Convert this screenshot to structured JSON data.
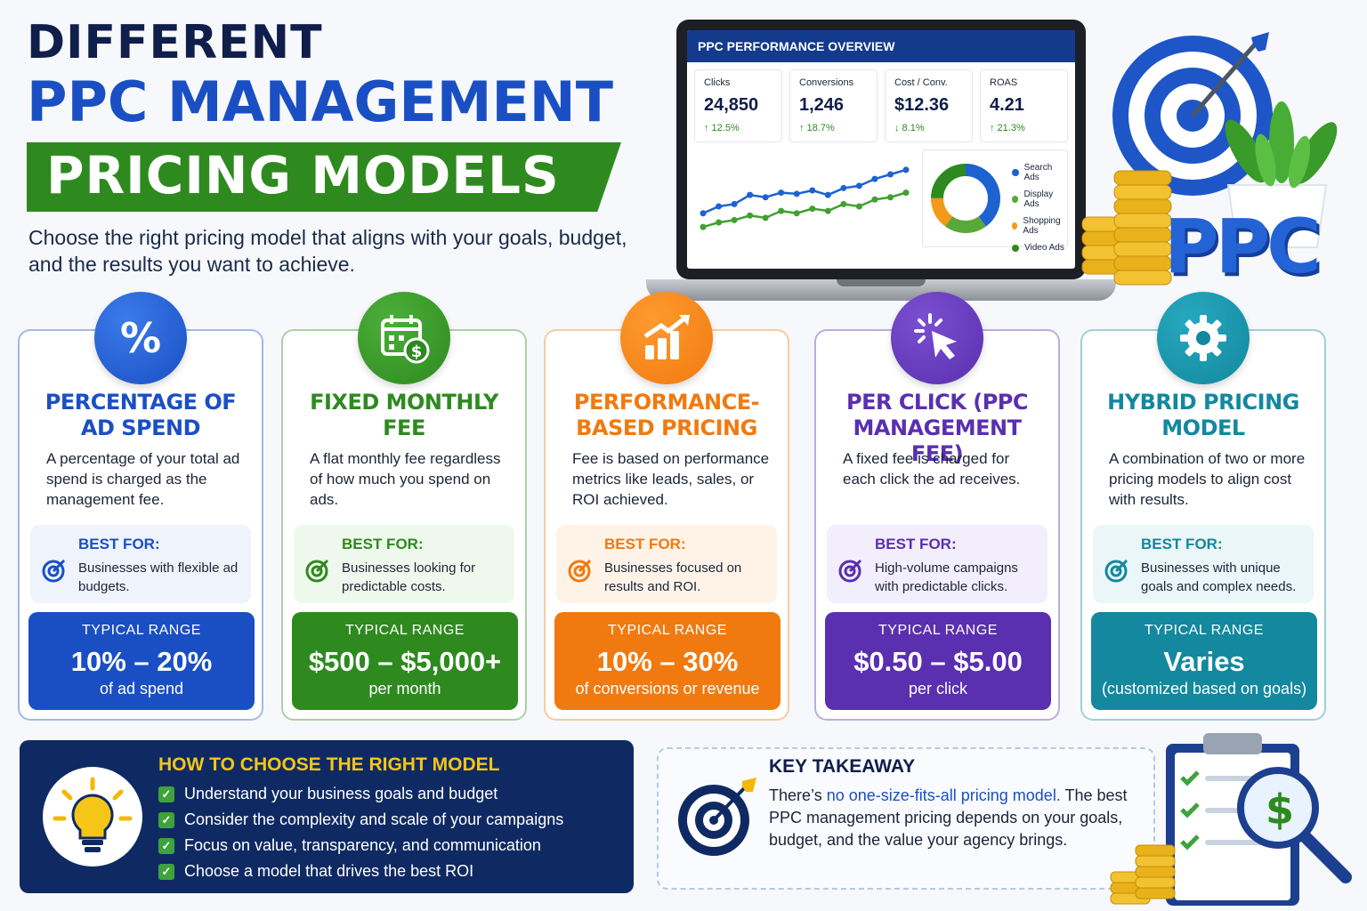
{
  "header": {
    "title_line1": "DIFFERENT",
    "title_line2": "PPC MANAGEMENT",
    "title_line3": "PRICING MODELS",
    "subtitle": "Choose the right pricing model that aligns with your goals, budget, and the results you want to achieve."
  },
  "dashboard": {
    "title": "PPC PERFORMANCE OVERVIEW",
    "kpis": [
      {
        "label": "Clicks",
        "value": "24,850",
        "delta": "↑ 12.5%"
      },
      {
        "label": "Conversions",
        "value": "1,246",
        "delta": "↑ 18.7%"
      },
      {
        "label": "Cost / Conv.",
        "value": "$12.36",
        "delta": "↓ 8.1%"
      },
      {
        "label": "ROAS",
        "value": "4.21",
        "delta": "↑ 21.3%"
      }
    ],
    "legend": [
      {
        "label": "Search Ads",
        "color": "#1e62d0"
      },
      {
        "label": "Display Ads",
        "color": "#59a83a"
      },
      {
        "label": "Shopping Ads",
        "color": "#f39a1b"
      },
      {
        "label": "Video Ads",
        "color": "#2e8a1f"
      }
    ],
    "line_series": {
      "blue": [
        22,
        28,
        30,
        38,
        36,
        40,
        39,
        42,
        38,
        44,
        46,
        52,
        56,
        60
      ],
      "green": [
        10,
        14,
        16,
        20,
        18,
        24,
        22,
        26,
        24,
        30,
        28,
        34,
        36,
        40
      ]
    },
    "donut_shares": [
      40,
      20,
      15,
      25
    ]
  },
  "badge": {
    "text": "PPC"
  },
  "cards": [
    {
      "title": "PERCENTAGE OF AD SPEND",
      "description": "A percentage of your total ad spend is charged as the management fee.",
      "best_label": "BEST FOR:",
      "best_text": "Businesses with flexible ad budgets.",
      "range_label": "TYPICAL RANGE",
      "range_value": "10% – 20%",
      "range_sub": "of ad spend",
      "icon": "percent-icon",
      "color": "#1a4fc4"
    },
    {
      "title": "FIXED MONTHLY FEE",
      "description": "A flat monthly fee regardless of how much you spend on ads.",
      "best_label": "BEST FOR:",
      "best_text": "Businesses looking for predictable costs.",
      "range_label": "TYPICAL RANGE",
      "range_value": "$500 – $5,000+",
      "range_sub": "per month",
      "icon": "calendar-dollar-icon",
      "color": "#2e8a1f"
    },
    {
      "title": "PERFORMANCE-BASED PRICING",
      "description": "Fee is based on performance metrics like leads, sales, or ROI achieved.",
      "best_label": "BEST FOR:",
      "best_text": "Businesses focused on results and ROI.",
      "range_label": "TYPICAL RANGE",
      "range_value": "10% – 30%",
      "range_sub": "of conversions or revenue",
      "icon": "growth-chart-icon",
      "color": "#f07a10"
    },
    {
      "title": "PER CLICK (PPC MANAGEMENT FEE)",
      "description": "A fixed fee is charged for each click the ad receives.",
      "best_label": "BEST FOR:",
      "best_text": "High-volume campaigns with predictable clicks.",
      "range_label": "TYPICAL RANGE",
      "range_value": "$0.50 – $5.00",
      "range_sub": "per click",
      "icon": "cursor-click-icon",
      "color": "#5a2fb0"
    },
    {
      "title": "HYBRID PRICING MODEL",
      "description": "A combination of two or more pricing models to align cost with results.",
      "best_label": "BEST FOR:",
      "best_text": "Businesses with unique goals and complex needs.",
      "range_label": "TYPICAL RANGE",
      "range_value": "Varies",
      "range_sub": "(customized based on goals)",
      "icon": "gear-icon",
      "color": "#13889e"
    }
  ],
  "choose": {
    "title": "HOW TO CHOOSE THE RIGHT MODEL",
    "items": [
      "Understand your business goals and budget",
      "Consider the complexity and scale of your campaigns",
      "Focus on value, transparency, and communication",
      "Choose a model that drives the best ROI"
    ],
    "check": "✓"
  },
  "takeaway": {
    "title": "KEY TAKEAWAY",
    "highlight_prefix": "There’s ",
    "highlight": "no one-size-fits-all pricing model.",
    "rest": "The best PPC management pricing depends on your goals, budget, and the value your agency brings."
  }
}
